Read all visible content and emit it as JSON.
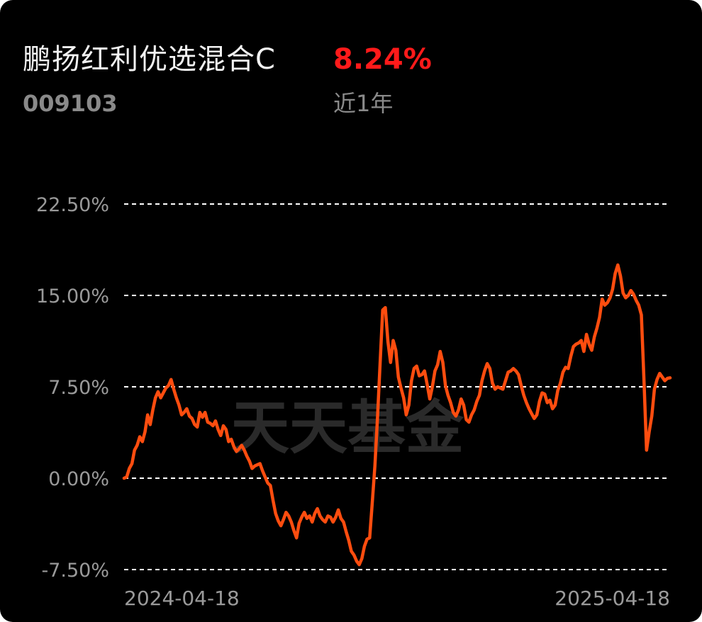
{
  "header": {
    "fund_name": "鹏扬红利优选混合C",
    "return_value": "8.24%",
    "fund_code": "009103",
    "period_label": "近1年"
  },
  "colors": {
    "background": "#000000",
    "line": "#ff4d0f",
    "return_positive": "#ff1a1a",
    "grid": "#ffffff",
    "muted_text": "#9a9a9a"
  },
  "watermark": "天天基金",
  "chart_data": {
    "type": "line",
    "title": "",
    "xlabel": "",
    "ylabel": "",
    "ylim": [
      -7.5,
      22.5
    ],
    "y_ticks": [
      22.5,
      15.0,
      7.5,
      0.0,
      -7.5
    ],
    "y_tick_labels": [
      "22.50%",
      "15.00%",
      "7.50%",
      "0.00%",
      "-7.50%"
    ],
    "x_tick_labels": [
      "2024-04-18",
      "2025-04-18"
    ],
    "grid": "horizontal dashed",
    "series": [
      {
        "values": [
          0.0,
          0.1,
          0.8,
          1.2,
          2.3,
          2.7,
          3.4,
          3.0,
          3.8,
          5.2,
          4.4,
          5.6,
          6.6,
          7.1,
          6.6,
          7.0,
          7.4,
          7.6,
          8.1,
          7.3,
          6.6,
          6.0,
          5.2,
          5.4,
          5.7,
          5.1,
          4.9,
          4.4,
          4.2,
          5.4,
          5.0,
          5.4,
          4.6,
          4.5,
          4.3,
          4.7,
          4.0,
          3.5,
          4.3,
          4.0,
          3.0,
          3.2,
          2.6,
          2.2,
          2.4,
          2.7,
          2.3,
          1.8,
          1.4,
          0.8,
          1.0,
          1.1,
          1.2,
          0.6,
          0.1,
          -0.4,
          -0.6,
          -1.8,
          -2.9,
          -3.5,
          -3.9,
          -3.4,
          -2.8,
          -3.1,
          -3.6,
          -4.3,
          -4.9,
          -3.7,
          -3.2,
          -2.8,
          -3.3,
          -3.1,
          -3.6,
          -2.9,
          -2.5,
          -3.1,
          -3.4,
          -3.6,
          -3.1,
          -3.2,
          -3.6,
          -3.2,
          -2.6,
          -3.3,
          -3.6,
          -4.4,
          -5.1,
          -6.0,
          -6.3,
          -6.8,
          -7.1,
          -6.6,
          -5.6,
          -5.0,
          -4.9,
          -2.0,
          1.0,
          5.0,
          9.5,
          13.8,
          14.0,
          11.2,
          9.5,
          11.3,
          10.5,
          8.3,
          7.4,
          6.6,
          5.2,
          6.0,
          8.0,
          9.0,
          9.2,
          8.4,
          8.5,
          8.8,
          7.7,
          6.5,
          7.5,
          8.8,
          9.3,
          10.4,
          9.5,
          7.6,
          6.8,
          6.2,
          5.4,
          5.1,
          5.6,
          6.5,
          6.0,
          4.8,
          4.6,
          5.2,
          5.6,
          6.3,
          6.8,
          8.0,
          8.8,
          9.4,
          9.0,
          7.8,
          7.3,
          7.5,
          7.4,
          7.3,
          8.0,
          8.7,
          8.8,
          9.0,
          8.8,
          8.5,
          7.6,
          6.8,
          6.2,
          5.7,
          5.3,
          4.9,
          5.2,
          6.3,
          7.0,
          6.9,
          6.2,
          6.4,
          5.7,
          6.0,
          7.2,
          7.8,
          8.7,
          9.1,
          9.0,
          10.0,
          10.8,
          11.0,
          11.1,
          11.3,
          10.4,
          11.8,
          11.0,
          10.5,
          11.6,
          12.3,
          13.2,
          14.7,
          14.2,
          14.4,
          14.8,
          15.5,
          16.8,
          17.5,
          16.6,
          15.2,
          14.8,
          15.0,
          15.4,
          15.1,
          14.6,
          14.2,
          13.4,
          8.0,
          2.3,
          3.8,
          5.1,
          7.3,
          8.1,
          8.6,
          8.3,
          8.0,
          8.2,
          8.24
        ]
      }
    ]
  }
}
